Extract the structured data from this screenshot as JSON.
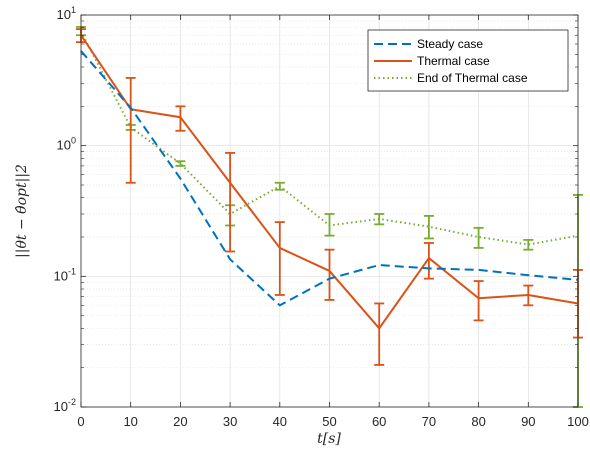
{
  "chart_data": {
    "type": "line",
    "title": "",
    "xlabel": "t[s]",
    "ylabel": "||θt − θ̂opt||2",
    "xlim": [
      0,
      100
    ],
    "ylim": [
      0.01,
      10
    ],
    "yscale": "log",
    "grid": true,
    "legend_placement": "top-right",
    "x_ticks": [
      "0",
      "10",
      "20",
      "30",
      "40",
      "50",
      "60",
      "70",
      "80",
      "90",
      "100"
    ],
    "y_ticks": [
      {
        "base": "10",
        "exp": "-2",
        "value": 0.01
      },
      {
        "base": "10",
        "exp": "-1",
        "value": 0.1
      },
      {
        "base": "10",
        "exp": "0",
        "value": 1
      },
      {
        "base": "10",
        "exp": "1",
        "value": 10
      }
    ],
    "x": [
      0,
      10,
      20,
      30,
      40,
      50,
      60,
      70,
      80,
      90,
      100
    ],
    "series": [
      {
        "name": "Steady case",
        "color": "#0072BD",
        "style": "dashed",
        "values": [
          5.3,
          1.95,
          0.56,
          0.135,
          0.06,
          0.096,
          0.122,
          0.115,
          0.112,
          0.102,
          0.094
        ]
      },
      {
        "name": "Thermal case",
        "color": "#D95319",
        "style": "solid",
        "values": [
          7.0,
          1.9,
          1.65,
          0.52,
          0.165,
          0.11,
          0.04,
          0.138,
          0.068,
          0.072,
          0.062
        ],
        "error_low": [
          6.2,
          0.52,
          1.3,
          0.155,
          0.072,
          0.066,
          0.021,
          0.096,
          0.046,
          0.06,
          0.034
        ],
        "error_high": [
          7.8,
          3.3,
          2.0,
          0.88,
          0.26,
          0.16,
          0.062,
          0.18,
          0.092,
          0.085,
          0.112
        ]
      },
      {
        "name": "End of Thermal case",
        "color": "#77AC30",
        "style": "dotted",
        "values": [
          7.5,
          1.38,
          0.73,
          0.3,
          0.49,
          0.245,
          0.275,
          0.24,
          0.2,
          0.175,
          0.205
        ],
        "error_low": [
          7.0,
          1.32,
          0.7,
          0.245,
          0.46,
          0.205,
          0.25,
          0.195,
          0.165,
          0.16,
          0.01
        ],
        "error_high": [
          8.1,
          1.44,
          0.76,
          0.35,
          0.52,
          0.3,
          0.3,
          0.29,
          0.235,
          0.19,
          0.42
        ]
      }
    ]
  }
}
